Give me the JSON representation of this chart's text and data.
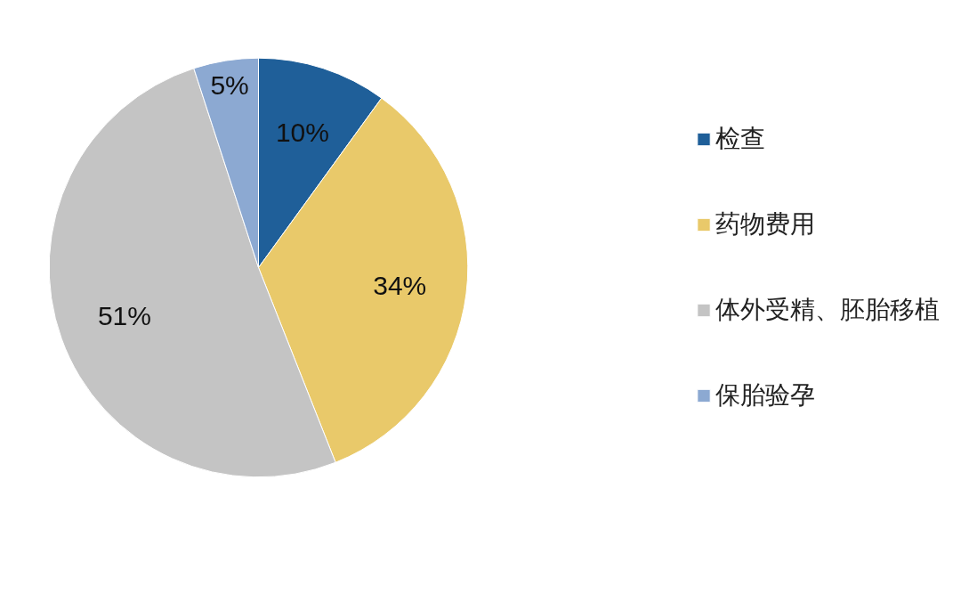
{
  "chart_data": {
    "type": "pie",
    "categories": [
      "检查",
      "药物费用",
      "体外受精、胚胎移植",
      "保胎验孕"
    ],
    "values": [
      10,
      34,
      51,
      5
    ],
    "colors": [
      "#1f5f99",
      "#e9c96a",
      "#c4c4c4",
      "#8ca9d2"
    ],
    "value_labels": [
      "10%",
      "34%",
      "51%",
      "5%"
    ],
    "legend": "right"
  }
}
